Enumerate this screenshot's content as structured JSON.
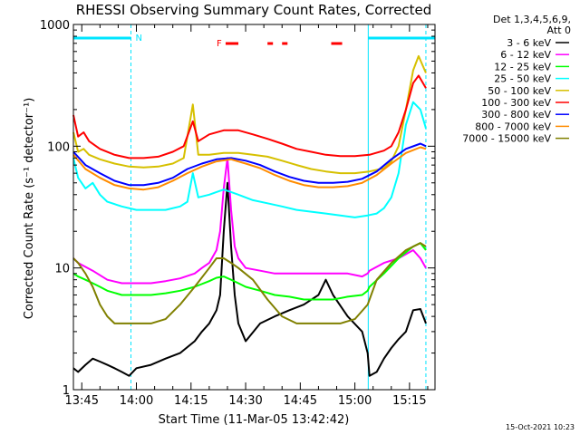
{
  "colors": {
    "background": "#ffffff",
    "axis": "#000000",
    "title": "#000000",
    "flag_bar": "#00e5ff",
    "flare_flag": "#ff0000"
  },
  "chart_data": {
    "type": "line",
    "title": "RHESSI Observing Summary Count Rates, Corrected",
    "xlabel": "Start Time (11-Mar-05 13:42:42)",
    "ylabel": "Corrected Count Rate (s⁻¹ detector⁻¹)",
    "footer": "15-Oct-2021 10:23",
    "y_scale": "log",
    "ylim": [
      1,
      1000
    ],
    "xlim": [
      "13:42:42",
      "15:22:00"
    ],
    "x_unit": "minutes after 13:42:42",
    "y_ticks": [
      {
        "value": 1,
        "label": "1"
      },
      {
        "value": 10,
        "label": "10"
      },
      {
        "value": 100,
        "label": "100"
      },
      {
        "value": 1000,
        "label": "1000"
      }
    ],
    "x_ticks": [
      {
        "time": "13:45",
        "label": "13:45"
      },
      {
        "time": "14:00",
        "label": "14:00"
      },
      {
        "time": "14:15",
        "label": "14:15"
      },
      {
        "time": "14:30",
        "label": "14:30"
      },
      {
        "time": "14:45",
        "label": "14:45"
      },
      {
        "time": "15:00",
        "label": "15:00"
      },
      {
        "time": "15:15",
        "label": "15:15"
      }
    ],
    "legend": {
      "header1": "Det 1,3,4,5,6,9,",
      "header2": "Att 0",
      "placement": "right, outside plot"
    },
    "flags": {
      "night_label": "N",
      "flare_label": "F",
      "night_intervals": [
        [
          "13:42:42",
          "13:58:30"
        ],
        [
          "15:03:40",
          "15:22:00"
        ]
      ],
      "flare_intervals": [
        [
          "14:24:30",
          "14:28:00"
        ],
        [
          "14:36:00",
          "14:37:30"
        ],
        [
          "14:40:00",
          "14:41:30"
        ],
        [
          "14:53:30",
          "14:56:30"
        ]
      ],
      "dashed_lines": [
        "13:58:30",
        "15:19:30"
      ],
      "solid_lines": [
        "13:42:42",
        "15:03:40"
      ]
    },
    "series": [
      {
        "name": "3 - 6 keV",
        "color": "#000000",
        "x": [
          "13:42:42",
          "13:44:00",
          "13:46:00",
          "13:48:00",
          "13:50:00",
          "13:52:00",
          "13:54:00",
          "13:56:00",
          "13:58:00",
          "14:00:00",
          "14:04:00",
          "14:08:00",
          "14:12:00",
          "14:16:00",
          "14:18:00",
          "14:20:00",
          "14:22:00",
          "14:23:00",
          "14:24:00",
          "14:25:00",
          "14:26:00",
          "14:27:00",
          "14:28:00",
          "14:30:00",
          "14:34:00",
          "14:38:00",
          "14:42:00",
          "14:46:00",
          "14:50:00",
          "14:52:00",
          "14:54:00",
          "14:58:00",
          "15:02:00",
          "15:03:30",
          "15:04:00",
          "15:06:00",
          "15:08:00",
          "15:10:00",
          "15:12:00",
          "15:14:00",
          "15:16:00",
          "15:18:00",
          "15:19:30"
        ],
        "values": [
          1.5,
          1.4,
          1.6,
          1.8,
          1.7,
          1.6,
          1.5,
          1.4,
          1.3,
          1.5,
          1.6,
          1.8,
          2.0,
          2.5,
          3.0,
          3.5,
          4.5,
          6.0,
          20,
          50,
          15,
          6.0,
          3.5,
          2.5,
          3.5,
          4.0,
          4.5,
          5.0,
          6.0,
          8.0,
          6.0,
          4.0,
          3.0,
          2.0,
          1.3,
          1.4,
          1.8,
          2.2,
          2.6,
          3.0,
          4.5,
          4.6,
          3.5
        ]
      },
      {
        "name": "6 - 12 keV",
        "color": "#ff00ff",
        "x": [
          "13:42:42",
          "13:44:00",
          "13:48:00",
          "13:52:00",
          "13:56:00",
          "14:00:00",
          "14:04:00",
          "14:08:00",
          "14:12:00",
          "14:16:00",
          "14:18:00",
          "14:20:00",
          "14:22:00",
          "14:23:00",
          "14:24:00",
          "14:25:00",
          "14:26:00",
          "14:27:00",
          "14:28:00",
          "14:30:00",
          "14:34:00",
          "14:38:00",
          "14:42:00",
          "14:46:00",
          "14:50:00",
          "14:54:00",
          "14:58:00",
          "15:02:00",
          "15:03:30",
          "15:04:00",
          "15:08:00",
          "15:12:00",
          "15:16:00",
          "15:18:00",
          "15:19:30"
        ],
        "values": [
          12,
          11,
          9.5,
          8.0,
          7.5,
          7.5,
          7.5,
          7.8,
          8.2,
          9.0,
          10,
          11,
          14,
          20,
          45,
          80,
          30,
          15,
          12,
          10,
          9.5,
          9.0,
          9.0,
          9.0,
          9.0,
          9.0,
          9.0,
          8.5,
          9.0,
          9.5,
          11,
          12,
          14,
          12,
          10
        ]
      },
      {
        "name": "12 - 25 keV",
        "color": "#00ff00",
        "x": [
          "13:42:42",
          "13:44:00",
          "13:46:00",
          "13:48:00",
          "13:50:00",
          "13:52:00",
          "13:56:00",
          "14:00:00",
          "14:04:00",
          "14:08:00",
          "14:12:00",
          "14:16:00",
          "14:20:00",
          "14:22:00",
          "14:24:00",
          "14:26:00",
          "14:28:00",
          "14:30:00",
          "14:34:00",
          "14:38:00",
          "14:42:00",
          "14:46:00",
          "14:50:00",
          "14:54:00",
          "14:58:00",
          "15:02:00",
          "15:03:30",
          "15:04:00",
          "15:08:00",
          "15:12:00",
          "15:16:00",
          "15:18:00",
          "15:19:30"
        ],
        "values": [
          9.0,
          8.5,
          8.0,
          7.5,
          7.0,
          6.5,
          6.0,
          6.0,
          6.0,
          6.2,
          6.5,
          7.0,
          7.8,
          8.3,
          8.5,
          8.0,
          7.5,
          7.0,
          6.5,
          6.0,
          5.8,
          5.5,
          5.5,
          5.5,
          5.8,
          6.0,
          6.5,
          7.0,
          9.0,
          12,
          15,
          16,
          14
        ]
      },
      {
        "name": "25 - 50 keV",
        "color": "#00ffff",
        "x": [
          "13:42:42",
          "13:44:00",
          "13:46:00",
          "13:48:00",
          "13:50:00",
          "13:52:00",
          "13:56:00",
          "14:00:00",
          "14:04:00",
          "14:08:00",
          "14:12:00",
          "14:14:00",
          "14:15:30",
          "14:17:00",
          "14:20:00",
          "14:22:00",
          "14:24:00",
          "14:26:00",
          "14:28:00",
          "14:32:00",
          "14:36:00",
          "14:40:00",
          "14:44:00",
          "14:48:00",
          "14:52:00",
          "14:56:00",
          "15:00:00",
          "15:03:30",
          "15:06:00",
          "15:08:00",
          "15:10:00",
          "15:12:00",
          "15:14:00",
          "15:16:00",
          "15:18:00",
          "15:19:30"
        ],
        "values": [
          80,
          55,
          45,
          50,
          40,
          35,
          32,
          30,
          30,
          30,
          32,
          35,
          60,
          38,
          40,
          42,
          44,
          42,
          40,
          36,
          34,
          32,
          30,
          29,
          28,
          27,
          26,
          27,
          28,
          31,
          38,
          60,
          150,
          230,
          200,
          140
        ]
      },
      {
        "name": "50 - 100 keV",
        "color": "#d6c000",
        "x": [
          "13:42:42",
          "13:44:00",
          "13:45:30",
          "13:47:00",
          "13:50:00",
          "13:54:00",
          "13:58:00",
          "14:02:00",
          "14:06:00",
          "14:10:00",
          "14:13:00",
          "14:15:30",
          "14:17:00",
          "14:20:00",
          "14:24:00",
          "14:28:00",
          "14:32:00",
          "14:36:00",
          "14:40:00",
          "14:44:00",
          "14:48:00",
          "14:52:00",
          "14:56:00",
          "15:00:00",
          "15:04:00",
          "15:08:00",
          "15:10:00",
          "15:12:00",
          "15:14:00",
          "15:16:00",
          "15:17:30",
          "15:19:30"
        ],
        "values": [
          130,
          90,
          95,
          85,
          78,
          72,
          68,
          67,
          68,
          72,
          80,
          220,
          85,
          85,
          88,
          88,
          85,
          82,
          76,
          70,
          65,
          62,
          60,
          60,
          62,
          66,
          75,
          100,
          200,
          420,
          550,
          400
        ]
      },
      {
        "name": "100 - 300 keV",
        "color": "#ff0000",
        "x": [
          "13:42:42",
          "13:44:00",
          "13:45:30",
          "13:47:00",
          "13:50:00",
          "13:54:00",
          "13:58:00",
          "14:02:00",
          "14:06:00",
          "14:10:00",
          "14:13:00",
          "14:15:30",
          "14:17:00",
          "14:20:00",
          "14:24:00",
          "14:28:00",
          "14:32:00",
          "14:36:00",
          "14:40:00",
          "14:44:00",
          "14:48:00",
          "14:52:00",
          "14:56:00",
          "15:00:00",
          "15:04:00",
          "15:08:00",
          "15:10:00",
          "15:12:00",
          "15:14:00",
          "15:16:00",
          "15:17:30",
          "15:19:30"
        ],
        "values": [
          180,
          120,
          130,
          110,
          95,
          85,
          80,
          80,
          82,
          90,
          100,
          160,
          110,
          125,
          135,
          135,
          125,
          115,
          105,
          95,
          90,
          85,
          83,
          83,
          85,
          92,
          100,
          130,
          200,
          330,
          380,
          300
        ]
      },
      {
        "name": "300 - 800 keV",
        "color": "#0000ff",
        "x": [
          "13:42:42",
          "13:46:00",
          "13:50:00",
          "13:54:00",
          "13:58:00",
          "14:02:00",
          "14:06:00",
          "14:10:00",
          "14:14:00",
          "14:18:00",
          "14:22:00",
          "14:26:00",
          "14:30:00",
          "14:34:00",
          "14:38:00",
          "14:42:00",
          "14:46:00",
          "14:50:00",
          "14:54:00",
          "14:58:00",
          "15:02:00",
          "15:06:00",
          "15:10:00",
          "15:14:00",
          "15:18:00",
          "15:19:30"
        ],
        "values": [
          90,
          70,
          60,
          52,
          48,
          48,
          50,
          55,
          65,
          72,
          78,
          80,
          76,
          70,
          62,
          56,
          52,
          50,
          50,
          51,
          54,
          62,
          78,
          95,
          105,
          100
        ]
      },
      {
        "name": "800 - 7000 keV",
        "color": "#ff8c00",
        "x": [
          "13:42:42",
          "13:46:00",
          "13:50:00",
          "13:54:00",
          "13:58:00",
          "14:02:00",
          "14:06:00",
          "14:10:00",
          "14:14:00",
          "14:18:00",
          "14:22:00",
          "14:26:00",
          "14:30:00",
          "14:34:00",
          "14:38:00",
          "14:42:00",
          "14:46:00",
          "14:50:00",
          "14:54:00",
          "14:58:00",
          "15:02:00",
          "15:06:00",
          "15:10:00",
          "15:14:00",
          "15:18:00",
          "15:19:30"
        ],
        "values": [
          85,
          65,
          55,
          48,
          45,
          44,
          46,
          52,
          60,
          68,
          75,
          78,
          72,
          66,
          58,
          52,
          48,
          46,
          46,
          47,
          50,
          58,
          72,
          88,
          98,
          95
        ]
      },
      {
        "name": "7000 - 15000 keV",
        "color": "#808000",
        "x": [
          "13:42:42",
          "13:44:00",
          "13:46:00",
          "13:48:00",
          "13:50:00",
          "13:52:00",
          "13:54:00",
          "13:56:00",
          "14:00:00",
          "14:04:00",
          "14:08:00",
          "14:12:00",
          "14:16:00",
          "14:20:00",
          "14:22:00",
          "14:24:00",
          "14:26:00",
          "14:28:00",
          "14:32:00",
          "14:36:00",
          "14:40:00",
          "14:44:00",
          "14:48:00",
          "14:52:00",
          "14:56:00",
          "15:00:00",
          "15:03:30",
          "15:06:00",
          "15:10:00",
          "15:14:00",
          "15:18:00",
          "15:19:30"
        ],
        "values": [
          12,
          11,
          9.0,
          7.0,
          5.0,
          4.0,
          3.5,
          3.5,
          3.5,
          3.5,
          3.8,
          5.0,
          7.0,
          10,
          12,
          12,
          11,
          10,
          8.0,
          5.5,
          4.0,
          3.5,
          3.5,
          3.5,
          3.5,
          3.8,
          5.0,
          8.0,
          11,
          14,
          16,
          15
        ]
      }
    ]
  }
}
